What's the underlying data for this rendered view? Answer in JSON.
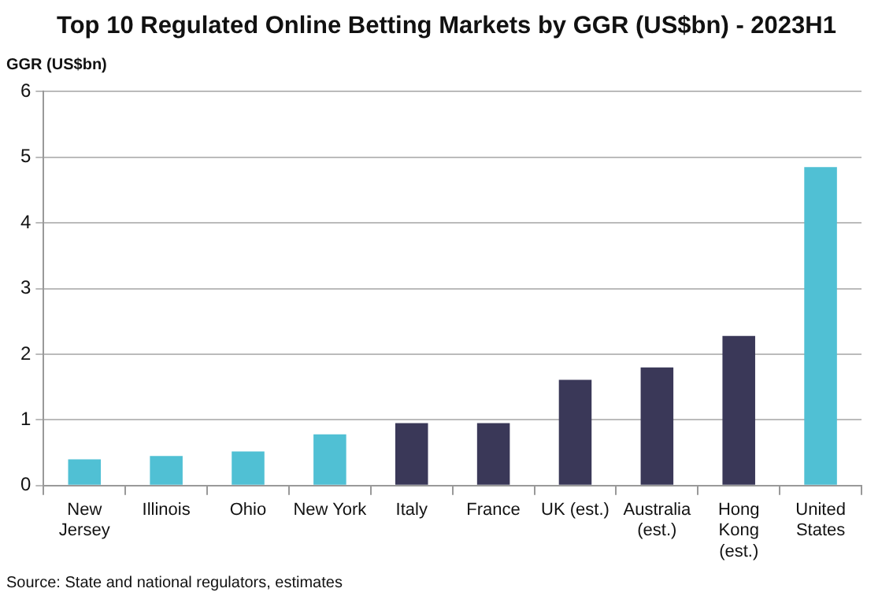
{
  "chart_data": {
    "type": "bar",
    "title": "Top 10 Regulated Online Betting Markets by GGR (US$bn) - 2023H1",
    "ylabel": "GGR (US$bn)",
    "categories": [
      "New\nJersey",
      "Illinois",
      "Ohio",
      "New York",
      "Italy",
      "France",
      "UK (est.)",
      "Australia\n(est.)",
      "Hong\nKong\n(est.)",
      "United\nStates"
    ],
    "values": [
      0.4,
      0.45,
      0.52,
      0.78,
      0.95,
      0.95,
      1.61,
      1.8,
      2.28,
      4.85
    ],
    "colors": [
      "#50c0d4",
      "#50c0d4",
      "#50c0d4",
      "#50c0d4",
      "#3a3858",
      "#3a3858",
      "#3a3858",
      "#3a3858",
      "#3a3858",
      "#50c0d4"
    ],
    "ylim": [
      0,
      6
    ],
    "yticks": [
      0,
      1,
      2,
      3,
      4,
      5,
      6
    ],
    "grid": "y",
    "legend": false,
    "annotations": [
      "Source: State and national regulators, estimates"
    ]
  }
}
